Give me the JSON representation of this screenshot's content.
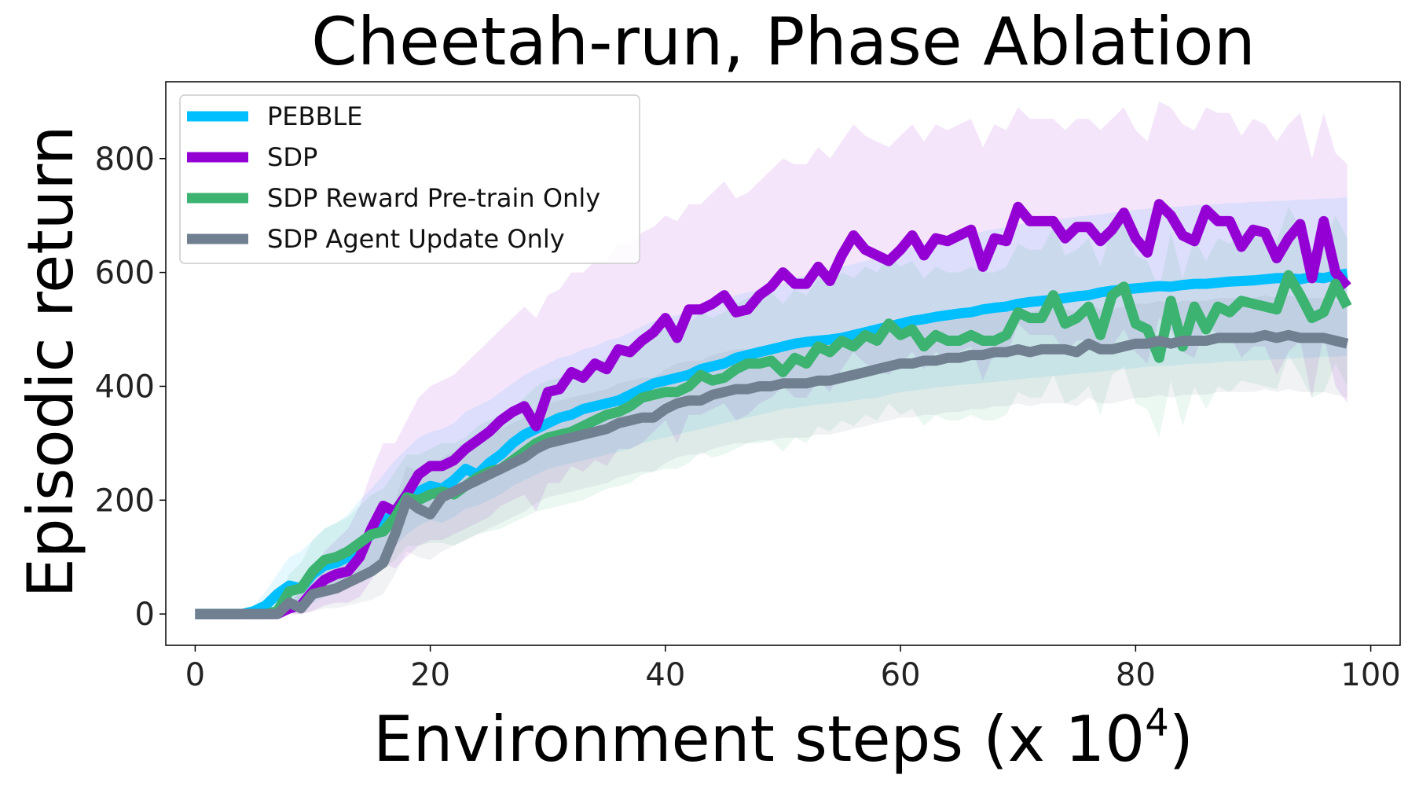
{
  "chart_data": {
    "type": "line",
    "title": "Cheetah-run, Phase Ablation",
    "xlabel": "Environment steps (x 10",
    "xlabel_exponent": "4",
    "xlabel_suffix": ")",
    "ylabel": "Episodic return",
    "xlim": [
      -2.5,
      102.5
    ],
    "ylim": [
      -55,
      935
    ],
    "x_ticks": [
      0,
      20,
      40,
      60,
      80,
      100
    ],
    "y_ticks": [
      0,
      200,
      400,
      600,
      800
    ],
    "grid": false,
    "legend_position": "top-left",
    "x": [
      0,
      1,
      2,
      3,
      4,
      5,
      6,
      7,
      8,
      9,
      10,
      11,
      12,
      13,
      14,
      15,
      16,
      17,
      18,
      19,
      20,
      21,
      22,
      23,
      24,
      25,
      26,
      27,
      28,
      29,
      30,
      31,
      32,
      33,
      34,
      35,
      36,
      37,
      38,
      39,
      40,
      41,
      42,
      43,
      44,
      45,
      46,
      47,
      48,
      49,
      50,
      51,
      52,
      53,
      54,
      55,
      56,
      57,
      58,
      59,
      60,
      61,
      62,
      63,
      64,
      65,
      66,
      67,
      68,
      69,
      70,
      71,
      72,
      73,
      74,
      75,
      76,
      77,
      78,
      79,
      80,
      81,
      82,
      83,
      84,
      85,
      86,
      87,
      88,
      89,
      90,
      91,
      92,
      93,
      94,
      95,
      96,
      97,
      98
    ],
    "series": [
      {
        "name": "PEBBLE",
        "color": "#00BFFF",
        "values": [
          0,
          0,
          0,
          0,
          0,
          5,
          15,
          35,
          50,
          45,
          70,
          85,
          90,
          100,
          120,
          140,
          160,
          180,
          200,
          215,
          225,
          220,
          235,
          255,
          245,
          265,
          280,
          300,
          315,
          325,
          335,
          345,
          350,
          360,
          365,
          370,
          375,
          385,
          395,
          405,
          410,
          415,
          420,
          430,
          435,
          440,
          450,
          455,
          460,
          465,
          470,
          475,
          478,
          480,
          482,
          485,
          490,
          495,
          500,
          505,
          510,
          515,
          518,
          522,
          525,
          528,
          530,
          535,
          538,
          540,
          545,
          548,
          550,
          552,
          555,
          558,
          560,
          565,
          568,
          570,
          572,
          574,
          576,
          575,
          578,
          580,
          580,
          582,
          584,
          585,
          586,
          588,
          590,
          590,
          588,
          592,
          590,
          595,
          598
        ],
        "upper": [
          0,
          0,
          0,
          0,
          5,
          15,
          40,
          70,
          100,
          110,
          130,
          150,
          160,
          175,
          200,
          220,
          245,
          270,
          290,
          310,
          320,
          325,
          335,
          355,
          365,
          375,
          390,
          405,
          420,
          430,
          440,
          450,
          455,
          465,
          470,
          480,
          485,
          495,
          505,
          515,
          520,
          525,
          530,
          540,
          545,
          550,
          560,
          565,
          570,
          575,
          580,
          590,
          595,
          600,
          605,
          610,
          615,
          620,
          625,
          630,
          640,
          645,
          650,
          655,
          660,
          665,
          668,
          672,
          676,
          680,
          684,
          688,
          690,
          692,
          695,
          698,
          700,
          702,
          705,
          708,
          710,
          712,
          714,
          715,
          716,
          718,
          720,
          720,
          722,
          722,
          724,
          724,
          726,
          726,
          728,
          728,
          730,
          730,
          732
        ],
        "lower": [
          0,
          0,
          0,
          0,
          0,
          0,
          0,
          5,
          10,
          10,
          20,
          30,
          35,
          45,
          60,
          80,
          100,
          120,
          140,
          155,
          165,
          160,
          170,
          185,
          190,
          200,
          210,
          225,
          235,
          245,
          255,
          260,
          265,
          270,
          275,
          280,
          285,
          290,
          300,
          305,
          310,
          315,
          320,
          325,
          330,
          335,
          340,
          345,
          350,
          355,
          360,
          362,
          365,
          368,
          370,
          372,
          375,
          378,
          380,
          385,
          390,
          392,
          395,
          398,
          400,
          402,
          404,
          406,
          408,
          410,
          412,
          414,
          416,
          418,
          420,
          422,
          424,
          426,
          428,
          430,
          432,
          434,
          436,
          436,
          438,
          440,
          440,
          442,
          444,
          444,
          446,
          446,
          448,
          448,
          450,
          450,
          452,
          452,
          454
        ]
      },
      {
        "name": "SDP",
        "color": "#9400D3",
        "values": [
          0,
          0,
          0,
          0,
          0,
          0,
          0,
          0,
          10,
          15,
          40,
          60,
          70,
          75,
          100,
          150,
          190,
          180,
          210,
          245,
          260,
          260,
          270,
          290,
          305,
          320,
          340,
          355,
          365,
          330,
          390,
          395,
          425,
          415,
          440,
          430,
          465,
          460,
          480,
          495,
          520,
          485,
          535,
          535,
          545,
          560,
          530,
          535,
          560,
          575,
          600,
          580,
          580,
          610,
          585,
          630,
          665,
          640,
          630,
          620,
          640,
          665,
          630,
          660,
          655,
          665,
          675,
          610,
          660,
          655,
          715,
          690,
          690,
          690,
          660,
          680,
          680,
          655,
          675,
          705,
          660,
          635,
          720,
          700,
          665,
          655,
          710,
          690,
          690,
          645,
          675,
          670,
          625,
          660,
          685,
          590,
          690,
          600,
          575
        ],
        "upper": [
          0,
          0,
          0,
          0,
          0,
          0,
          0,
          5,
          20,
          40,
          80,
          110,
          130,
          150,
          190,
          250,
          300,
          300,
          340,
          380,
          400,
          410,
          420,
          440,
          460,
          480,
          500,
          520,
          540,
          520,
          560,
          570,
          600,
          600,
          620,
          620,
          650,
          650,
          670,
          680,
          700,
          690,
          720,
          720,
          740,
          760,
          730,
          740,
          760,
          780,
          800,
          790,
          790,
          820,
          800,
          830,
          860,
          840,
          830,
          820,
          840,
          860,
          830,
          860,
          850,
          860,
          870,
          820,
          860,
          850,
          890,
          870,
          870,
          870,
          850,
          870,
          870,
          850,
          870,
          890,
          850,
          830,
          900,
          890,
          860,
          850,
          890,
          880,
          880,
          840,
          870,
          860,
          830,
          860,
          880,
          800,
          880,
          810,
          790
        ],
        "lower": [
          0,
          0,
          0,
          0,
          0,
          0,
          0,
          0,
          0,
          0,
          5,
          15,
          20,
          20,
          30,
          60,
          90,
          80,
          100,
          120,
          130,
          130,
          140,
          150,
          160,
          170,
          190,
          200,
          210,
          180,
          230,
          230,
          260,
          250,
          270,
          260,
          290,
          290,
          300,
          320,
          340,
          300,
          350,
          350,
          360,
          370,
          340,
          350,
          370,
          380,
          400,
          380,
          380,
          410,
          390,
          430,
          460,
          440,
          430,
          420,
          440,
          460,
          430,
          460,
          450,
          460,
          470,
          410,
          460,
          450,
          510,
          490,
          490,
          490,
          460,
          480,
          480,
          460,
          470,
          500,
          460,
          440,
          520,
          500,
          460,
          450,
          510,
          490,
          490,
          450,
          470,
          470,
          420,
          460,
          480,
          380,
          490,
          400,
          370
        ]
      },
      {
        "name": "SDP Reward Pre-train Only",
        "color": "#3CB371",
        "values": [
          0,
          0,
          0,
          0,
          0,
          0,
          0,
          5,
          40,
          45,
          75,
          95,
          100,
          110,
          125,
          140,
          145,
          170,
          205,
          200,
          210,
          215,
          210,
          225,
          240,
          250,
          255,
          270,
          285,
          300,
          310,
          315,
          320,
          330,
          340,
          350,
          355,
          365,
          380,
          385,
          390,
          390,
          400,
          420,
          410,
          415,
          430,
          440,
          440,
          445,
          425,
          450,
          440,
          470,
          460,
          480,
          470,
          490,
          480,
          510,
          490,
          500,
          470,
          490,
          480,
          480,
          490,
          480,
          480,
          490,
          530,
          520,
          520,
          560,
          510,
          520,
          540,
          490,
          560,
          575,
          510,
          500,
          450,
          550,
          470,
          540,
          500,
          540,
          530,
          550,
          545,
          540,
          535,
          595,
          560,
          520,
          530,
          580,
          540
        ],
        "upper": [
          0,
          0,
          0,
          0,
          0,
          0,
          5,
          20,
          70,
          90,
          130,
          150,
          160,
          170,
          190,
          210,
          220,
          250,
          280,
          280,
          290,
          300,
          300,
          310,
          330,
          340,
          350,
          360,
          380,
          400,
          410,
          415,
          420,
          430,
          440,
          450,
          460,
          470,
          485,
          495,
          500,
          500,
          510,
          530,
          520,
          530,
          545,
          555,
          560,
          565,
          545,
          570,
          560,
          590,
          580,
          600,
          590,
          610,
          600,
          630,
          610,
          620,
          590,
          610,
          600,
          600,
          610,
          600,
          600,
          610,
          650,
          640,
          640,
          680,
          630,
          640,
          660,
          610,
          680,
          695,
          630,
          620,
          570,
          670,
          590,
          660,
          620,
          660,
          650,
          670,
          665,
          660,
          655,
          715,
          680,
          640,
          650,
          700,
          660
        ],
        "lower": [
          0,
          0,
          0,
          0,
          0,
          0,
          0,
          0,
          10,
          15,
          30,
          45,
          50,
          55,
          65,
          75,
          80,
          95,
          120,
          120,
          125,
          125,
          120,
          130,
          140,
          145,
          150,
          160,
          170,
          180,
          185,
          190,
          195,
          200,
          210,
          220,
          225,
          230,
          245,
          250,
          255,
          255,
          265,
          285,
          275,
          280,
          290,
          300,
          300,
          305,
          285,
          310,
          300,
          330,
          320,
          340,
          330,
          350,
          340,
          370,
          350,
          360,
          330,
          350,
          340,
          340,
          350,
          340,
          340,
          350,
          390,
          380,
          380,
          420,
          370,
          380,
          400,
          350,
          420,
          435,
          370,
          360,
          310,
          410,
          330,
          400,
          360,
          400,
          390,
          410,
          405,
          400,
          395,
          455,
          420,
          380,
          390,
          440,
          400
        ]
      },
      {
        "name": "SDP Agent Update Only",
        "color": "#708090",
        "values": [
          0,
          0,
          0,
          0,
          0,
          0,
          0,
          0,
          20,
          10,
          35,
          40,
          45,
          55,
          65,
          75,
          90,
          140,
          200,
          185,
          175,
          205,
          215,
          225,
          235,
          245,
          255,
          265,
          275,
          290,
          300,
          305,
          310,
          315,
          320,
          325,
          335,
          340,
          345,
          345,
          360,
          370,
          375,
          375,
          385,
          390,
          395,
          395,
          400,
          400,
          405,
          405,
          405,
          410,
          410,
          415,
          420,
          425,
          430,
          435,
          440,
          440,
          445,
          445,
          450,
          450,
          455,
          455,
          460,
          460,
          465,
          460,
          465,
          465,
          465,
          460,
          475,
          465,
          465,
          470,
          475,
          475,
          480,
          475,
          480,
          480,
          480,
          485,
          485,
          485,
          485,
          490,
          485,
          490,
          485,
          485,
          485,
          480,
          475
        ],
        "upper": [
          0,
          0,
          0,
          0,
          0,
          0,
          0,
          10,
          50,
          50,
          80,
          90,
          100,
          110,
          120,
          130,
          150,
          200,
          260,
          250,
          245,
          275,
          285,
          295,
          305,
          315,
          325,
          335,
          345,
          360,
          370,
          375,
          380,
          385,
          390,
          395,
          405,
          410,
          415,
          415,
          430,
          440,
          445,
          445,
          455,
          460,
          465,
          465,
          470,
          470,
          475,
          475,
          475,
          480,
          480,
          485,
          490,
          495,
          500,
          505,
          510,
          510,
          515,
          515,
          520,
          520,
          525,
          525,
          530,
          530,
          535,
          530,
          535,
          535,
          535,
          530,
          545,
          535,
          535,
          540,
          545,
          545,
          550,
          545,
          550,
          550,
          550,
          555,
          555,
          555,
          555,
          560,
          555,
          560,
          555,
          555,
          555,
          550,
          545
        ],
        "lower": [
          0,
          0,
          0,
          0,
          0,
          0,
          0,
          0,
          0,
          0,
          5,
          10,
          10,
          15,
          20,
          25,
          35,
          70,
          110,
          100,
          95,
          110,
          120,
          130,
          140,
          150,
          160,
          170,
          180,
          195,
          205,
          210,
          215,
          220,
          225,
          230,
          240,
          245,
          250,
          250,
          265,
          275,
          280,
          280,
          290,
          295,
          300,
          300,
          305,
          305,
          310,
          310,
          310,
          315,
          315,
          320,
          325,
          330,
          335,
          340,
          345,
          345,
          350,
          350,
          355,
          355,
          360,
          360,
          365,
          365,
          370,
          365,
          370,
          370,
          370,
          365,
          380,
          370,
          370,
          375,
          380,
          380,
          385,
          380,
          385,
          385,
          385,
          390,
          390,
          390,
          390,
          395,
          390,
          395,
          390,
          390,
          390,
          385,
          380
        ]
      }
    ]
  }
}
